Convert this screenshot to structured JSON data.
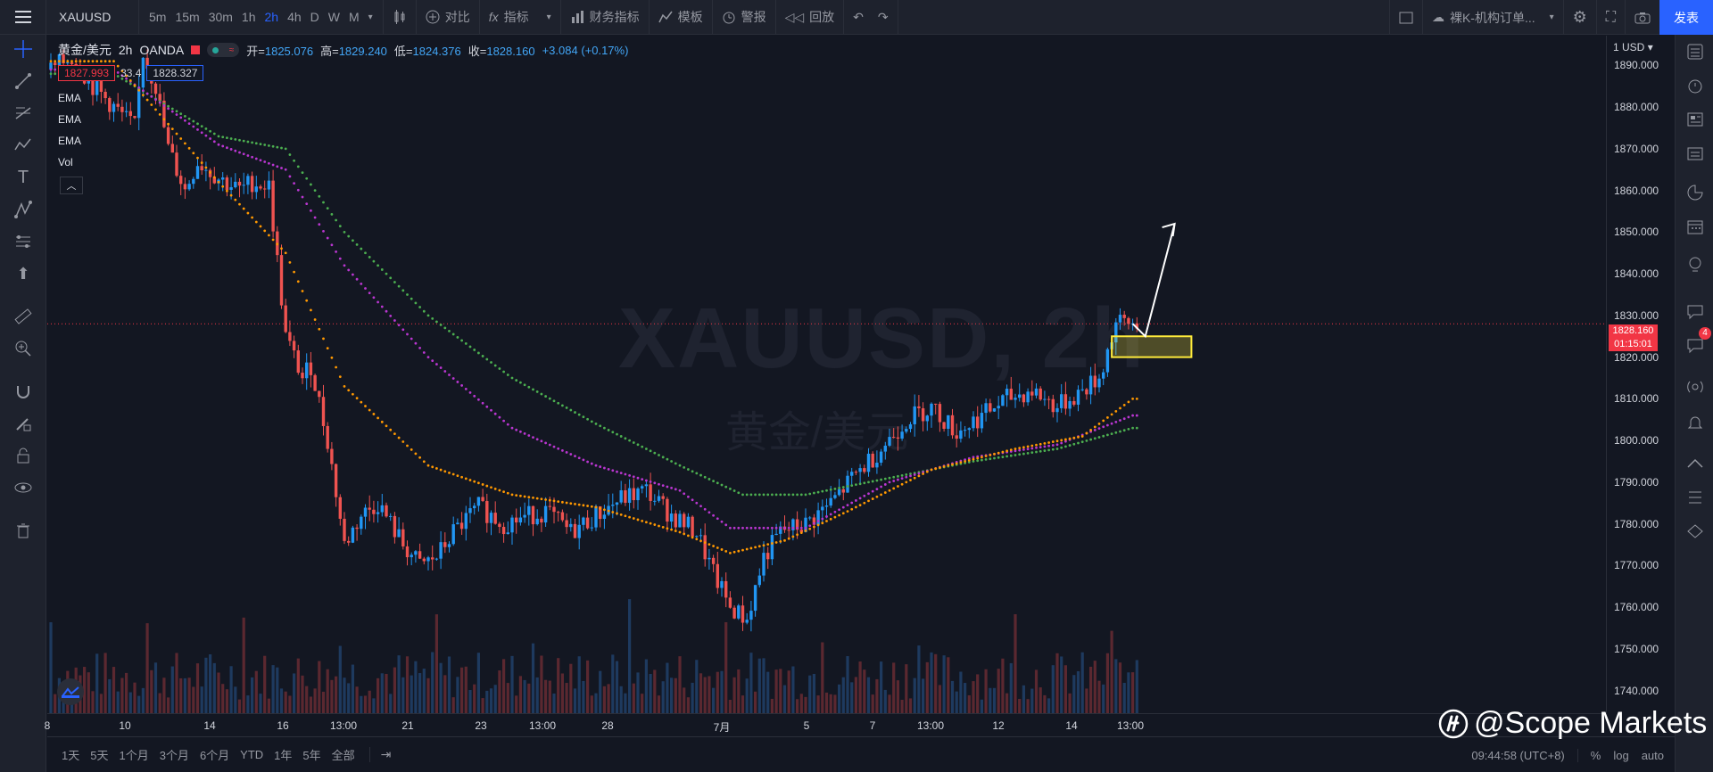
{
  "toolbar": {
    "symbol": "XAUUSD",
    "intervals": [
      "5m",
      "15m",
      "30m",
      "1h",
      "2h",
      "4h",
      "D",
      "W",
      "M"
    ],
    "active_interval": "2h",
    "compare": "对比",
    "indicators": "指标",
    "financials": "财务指标",
    "templates": "模板",
    "alert": "警报",
    "replay": "回放",
    "layout_name": "裸K-机构订单...",
    "publish": "发表"
  },
  "legend": {
    "name": "黄金/美元",
    "interval": "2h",
    "source": "OANDA",
    "open_label": "开=",
    "open": "1825.076",
    "high_label": "高=",
    "high": "1829.240",
    "low_label": "低=",
    "low": "1824.376",
    "close_label": "收=",
    "close": "1828.160",
    "change": "+3.084 (+0.17%)",
    "bid": "1827.993",
    "spread": "33.4",
    "ask": "1828.327"
  },
  "indicators": [
    "EMA",
    "EMA",
    "EMA",
    "Vol"
  ],
  "watermark": {
    "symbol": "XAUUSD, 2h",
    "description": "黄金/美元"
  },
  "price_scale": {
    "unit": "USD",
    "ticks": [
      "1890.000",
      "1880.000",
      "1870.000",
      "1860.000",
      "1850.000",
      "1840.000",
      "1830.000",
      "1820.000",
      "1810.000",
      "1800.000",
      "1790.000",
      "1780.000",
      "1770.000",
      "1760.000",
      "1750.000",
      "1740.000"
    ],
    "current_price": "1828.160",
    "countdown": "01:15:01"
  },
  "time_scale": {
    "ticks": [
      "8",
      "10",
      "14",
      "16",
      "13:00",
      "21",
      "23",
      "13:00",
      "28",
      "7月",
      "5",
      "7",
      "13:00",
      "12",
      "14",
      "13:00"
    ]
  },
  "bottom": {
    "ranges": [
      "1天",
      "5天",
      "1个月",
      "3个月",
      "6个月",
      "YTD",
      "1年",
      "5年",
      "全部"
    ],
    "clock": "09:44:58 (UTC+8)",
    "percent": "%",
    "log": "log",
    "auto": "auto"
  },
  "brand": "@Scope Markets",
  "notification_count": "4",
  "colors": {
    "background": "#131722",
    "up": "#2196f3",
    "down": "#ef5350",
    "ema_fast": "#ff9800",
    "ema_mid": "#ba36d1",
    "ema_slow": "#4caf50",
    "zone": "#ffeb3b",
    "accent": "#2962ff"
  },
  "chart_data": {
    "type": "candlestick",
    "symbol": "XAUUSD",
    "interval": "2h",
    "ylim": [
      1735,
      1895
    ],
    "close_path": [
      [
        0,
        1889
      ],
      [
        5,
        1892
      ],
      [
        10,
        1885
      ],
      [
        15,
        1880
      ],
      [
        20,
        1875
      ],
      [
        22,
        1893
      ],
      [
        25,
        1885
      ],
      [
        28,
        1870
      ],
      [
        32,
        1860
      ],
      [
        35,
        1867
      ],
      [
        40,
        1863
      ],
      [
        45,
        1860
      ],
      [
        48,
        1862
      ],
      [
        52,
        1861
      ],
      [
        56,
        1825
      ],
      [
        60,
        1815
      ],
      [
        62,
        1818
      ],
      [
        66,
        1800
      ],
      [
        70,
        1775
      ],
      [
        74,
        1782
      ],
      [
        78,
        1785
      ],
      [
        84,
        1775
      ],
      [
        88,
        1770
      ],
      [
        92,
        1772
      ],
      [
        96,
        1778
      ],
      [
        102,
        1784
      ],
      [
        108,
        1780
      ],
      [
        114,
        1782
      ],
      [
        118,
        1783
      ],
      [
        124,
        1778
      ],
      [
        130,
        1782
      ],
      [
        136,
        1786
      ],
      [
        142,
        1788
      ],
      [
        148,
        1782
      ],
      [
        154,
        1778
      ],
      [
        158,
        1768
      ],
      [
        162,
        1760
      ],
      [
        166,
        1757
      ],
      [
        170,
        1772
      ],
      [
        174,
        1778
      ],
      [
        180,
        1780
      ],
      [
        186,
        1785
      ],
      [
        192,
        1792
      ],
      [
        198,
        1798
      ],
      [
        204,
        1805
      ],
      [
        210,
        1808
      ],
      [
        216,
        1802
      ],
      [
        222,
        1806
      ],
      [
        228,
        1810
      ],
      [
        234,
        1812
      ],
      [
        240,
        1808
      ],
      [
        246,
        1812
      ],
      [
        250,
        1815
      ],
      [
        254,
        1828
      ],
      [
        258,
        1828
      ]
    ],
    "ema_fast_path": [
      [
        0,
        1891
      ],
      [
        15,
        1891
      ],
      [
        40,
        1862
      ],
      [
        56,
        1845
      ],
      [
        70,
        1813
      ],
      [
        90,
        1794
      ],
      [
        110,
        1787
      ],
      [
        130,
        1784
      ],
      [
        150,
        1778
      ],
      [
        162,
        1773
      ],
      [
        175,
        1776
      ],
      [
        190,
        1783
      ],
      [
        210,
        1793
      ],
      [
        230,
        1798
      ],
      [
        246,
        1801
      ],
      [
        258,
        1810
      ]
    ],
    "ema_mid_path": [
      [
        0,
        1889
      ],
      [
        15,
        1889
      ],
      [
        40,
        1871
      ],
      [
        56,
        1865
      ],
      [
        70,
        1842
      ],
      [
        90,
        1820
      ],
      [
        110,
        1803
      ],
      [
        130,
        1794
      ],
      [
        150,
        1788
      ],
      [
        162,
        1779
      ],
      [
        180,
        1779
      ],
      [
        200,
        1790
      ],
      [
        220,
        1796
      ],
      [
        240,
        1799
      ],
      [
        258,
        1806
      ]
    ],
    "ema_slow_path": [
      [
        0,
        1888
      ],
      [
        15,
        1888
      ],
      [
        40,
        1873
      ],
      [
        56,
        1870
      ],
      [
        70,
        1850
      ],
      [
        90,
        1830
      ],
      [
        110,
        1815
      ],
      [
        130,
        1804
      ],
      [
        150,
        1794
      ],
      [
        165,
        1787
      ],
      [
        180,
        1787
      ],
      [
        200,
        1791
      ],
      [
        220,
        1795
      ],
      [
        240,
        1798
      ],
      [
        258,
        1803
      ]
    ],
    "demand_zone": [
      1820,
      1825
    ],
    "projection_arrow": [
      "1825",
      "1852"
    ],
    "current_price_line": 1828
  }
}
